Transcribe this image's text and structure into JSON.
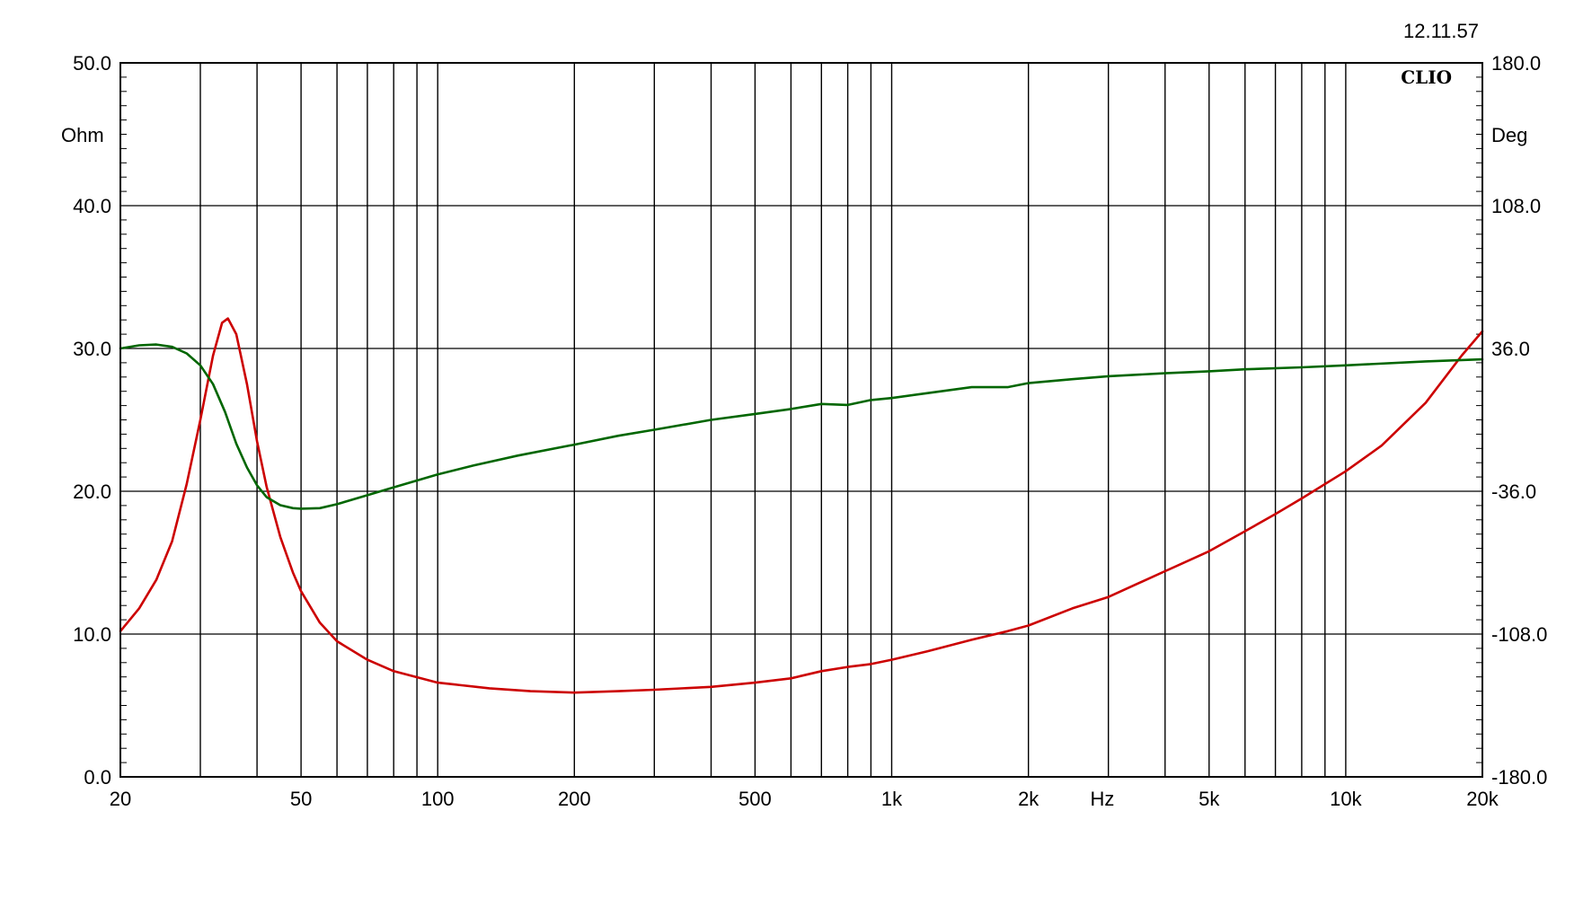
{
  "timestamp": "12.11.57",
  "brand": "CLIO",
  "chart_data": {
    "type": "line",
    "x_scale": "log",
    "xlim": [
      20,
      20000
    ],
    "x_unit": "Hz",
    "x_tick_labels": [
      {
        "value": 20,
        "label": "20"
      },
      {
        "value": 50,
        "label": "50"
      },
      {
        "value": 100,
        "label": "100"
      },
      {
        "value": 200,
        "label": "200"
      },
      {
        "value": 500,
        "label": "500"
      },
      {
        "value": 1000,
        "label": "1k"
      },
      {
        "value": 2000,
        "label": "2k"
      },
      {
        "value": 5000,
        "label": "5k"
      },
      {
        "value": 10000,
        "label": "10k"
      },
      {
        "value": 20000,
        "label": "20k"
      }
    ],
    "x_gridlines": [
      20,
      30,
      40,
      50,
      60,
      70,
      80,
      90,
      100,
      200,
      300,
      400,
      500,
      600,
      700,
      800,
      900,
      1000,
      2000,
      3000,
      4000,
      5000,
      6000,
      7000,
      8000,
      9000,
      10000,
      20000
    ],
    "y_left": {
      "unit": "Ohm",
      "lim": [
        0,
        50
      ],
      "ticks": [
        {
          "value": 0,
          "label": "0.0"
        },
        {
          "value": 10,
          "label": "10.0"
        },
        {
          "value": 20,
          "label": "20.0"
        },
        {
          "value": 30,
          "label": "30.0"
        },
        {
          "value": 40,
          "label": "40.0"
        },
        {
          "value": 50,
          "label": "50.0"
        }
      ]
    },
    "y_right": {
      "unit": "Deg",
      "lim": [
        -180,
        180
      ],
      "ticks": [
        {
          "value": -180,
          "label": "-180.0"
        },
        {
          "value": -108,
          "label": "-108.0"
        },
        {
          "value": -36,
          "label": "-36.0"
        },
        {
          "value": 36,
          "label": "36.0"
        },
        {
          "value": 108,
          "label": "108.0"
        },
        {
          "value": 180,
          "label": "180.0"
        }
      ]
    },
    "grid": true,
    "series": [
      {
        "color": "#cc0000",
        "axis": "left",
        "points": [
          [
            20,
            10.2
          ],
          [
            22,
            11.8
          ],
          [
            24,
            13.8
          ],
          [
            26,
            16.5
          ],
          [
            28,
            20.5
          ],
          [
            30,
            25.0
          ],
          [
            32,
            29.5
          ],
          [
            33.5,
            31.8
          ],
          [
            34.5,
            32.1
          ],
          [
            36,
            31.0
          ],
          [
            38,
            27.5
          ],
          [
            40,
            23.5
          ],
          [
            42,
            20.3
          ],
          [
            45,
            16.8
          ],
          [
            48,
            14.3
          ],
          [
            50,
            13.0
          ],
          [
            55,
            10.8
          ],
          [
            60,
            9.5
          ],
          [
            70,
            8.2
          ],
          [
            80,
            7.4
          ],
          [
            100,
            6.6
          ],
          [
            130,
            6.2
          ],
          [
            160,
            6.0
          ],
          [
            200,
            5.9
          ],
          [
            250,
            6.0
          ],
          [
            300,
            6.1
          ],
          [
            400,
            6.3
          ],
          [
            500,
            6.6
          ],
          [
            600,
            6.9
          ],
          [
            700,
            7.4
          ],
          [
            800,
            7.7
          ],
          [
            900,
            7.9
          ],
          [
            1000,
            8.2
          ],
          [
            1200,
            8.8
          ],
          [
            1500,
            9.6
          ],
          [
            1800,
            10.2
          ],
          [
            2000,
            10.6
          ],
          [
            2500,
            11.8
          ],
          [
            3000,
            12.6
          ],
          [
            4000,
            14.4
          ],
          [
            5000,
            15.8
          ],
          [
            6000,
            17.2
          ],
          [
            7000,
            18.4
          ],
          [
            8000,
            19.5
          ],
          [
            10000,
            21.4
          ],
          [
            12000,
            23.2
          ],
          [
            15000,
            26.2
          ],
          [
            18000,
            29.5
          ],
          [
            20000,
            31.2
          ]
        ]
      },
      {
        "color": "#006600",
        "axis": "right",
        "points": [
          [
            20,
            36.0
          ],
          [
            22,
            37.6
          ],
          [
            24,
            38.0
          ],
          [
            26,
            36.8
          ],
          [
            28,
            33.5
          ],
          [
            30,
            27.5
          ],
          [
            32,
            18.0
          ],
          [
            34,
            4.0
          ],
          [
            36,
            -12.0
          ],
          [
            38,
            -24.0
          ],
          [
            40,
            -33.0
          ],
          [
            42,
            -39.0
          ],
          [
            45,
            -43.0
          ],
          [
            48,
            -44.5
          ],
          [
            50,
            -44.8
          ],
          [
            55,
            -44.5
          ],
          [
            60,
            -42.5
          ],
          [
            70,
            -38.0
          ],
          [
            80,
            -34.0
          ],
          [
            100,
            -27.5
          ],
          [
            120,
            -23.0
          ],
          [
            150,
            -18.0
          ],
          [
            200,
            -12.5
          ],
          [
            250,
            -8.0
          ],
          [
            300,
            -5.0
          ],
          [
            400,
            0.0
          ],
          [
            500,
            3.0
          ],
          [
            600,
            5.5
          ],
          [
            700,
            8.0
          ],
          [
            800,
            7.5
          ],
          [
            900,
            10.0
          ],
          [
            1000,
            11.0
          ],
          [
            1200,
            13.5
          ],
          [
            1500,
            16.5
          ],
          [
            1800,
            16.5
          ],
          [
            2000,
            18.5
          ],
          [
            2500,
            20.5
          ],
          [
            3000,
            22.0
          ],
          [
            4000,
            23.5
          ],
          [
            5000,
            24.5
          ],
          [
            6000,
            25.5
          ],
          [
            8000,
            26.5
          ],
          [
            10000,
            27.5
          ],
          [
            15000,
            29.5
          ],
          [
            20000,
            30.5
          ]
        ]
      }
    ]
  }
}
